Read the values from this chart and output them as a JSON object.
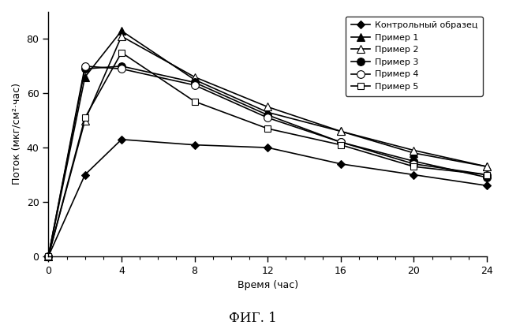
{
  "title": "ФИГ. 1",
  "xlabel": "Время (час)",
  "ylabel": "Поток (мкг/см²·час)",
  "xlim": [
    0,
    24
  ],
  "ylim": [
    0,
    90
  ],
  "xticks": [
    0,
    4,
    8,
    12,
    16,
    20,
    24
  ],
  "yticks": [
    0,
    20,
    40,
    60,
    80
  ],
  "series": [
    {
      "label": "Контрольный образец",
      "x": [
        0,
        2,
        4,
        8,
        12,
        16,
        20,
        24
      ],
      "y": [
        0,
        30,
        43,
        41,
        40,
        34,
        30,
        26
      ],
      "color": "#000000",
      "marker": "D",
      "markersize": 5,
      "linewidth": 1.2,
      "markerfacecolor": "#000000"
    },
    {
      "label": "Пример 1",
      "x": [
        0,
        2,
        4,
        8,
        12,
        16,
        20,
        24
      ],
      "y": [
        0,
        66,
        83,
        65,
        53,
        46,
        38,
        33
      ],
      "color": "#000000",
      "marker": "^",
      "markersize": 7,
      "linewidth": 1.2,
      "markerfacecolor": "#000000"
    },
    {
      "label": "Пример 2",
      "x": [
        0,
        2,
        4,
        8,
        12,
        16,
        20,
        24
      ],
      "y": [
        0,
        50,
        81,
        66,
        55,
        46,
        39,
        33
      ],
      "color": "#000000",
      "marker": "^",
      "markersize": 7,
      "linewidth": 1.2,
      "markerfacecolor": "#ffffff"
    },
    {
      "label": "Пример 3",
      "x": [
        0,
        2,
        4,
        8,
        12,
        16,
        20,
        24
      ],
      "y": [
        0,
        69,
        70,
        64,
        52,
        42,
        35,
        29
      ],
      "color": "#000000",
      "marker": "o",
      "markersize": 7,
      "linewidth": 1.2,
      "markerfacecolor": "#000000"
    },
    {
      "label": "Пример 4",
      "x": [
        0,
        2,
        4,
        8,
        12,
        16,
        20,
        24
      ],
      "y": [
        0,
        70,
        69,
        63,
        51,
        42,
        34,
        30
      ],
      "color": "#000000",
      "marker": "o",
      "markersize": 7,
      "linewidth": 1.2,
      "markerfacecolor": "#ffffff"
    },
    {
      "label": "Пример 5",
      "x": [
        0,
        2,
        4,
        8,
        12,
        16,
        20,
        24
      ],
      "y": [
        0,
        51,
        75,
        57,
        47,
        41,
        33,
        30
      ],
      "color": "#000000",
      "marker": "s",
      "markersize": 6,
      "linewidth": 1.2,
      "markerfacecolor": "#ffffff"
    }
  ],
  "background_color": "#ffffff",
  "legend_fontsize": 8,
  "axis_fontsize": 9,
  "tick_fontsize": 9,
  "title_fontsize": 12
}
